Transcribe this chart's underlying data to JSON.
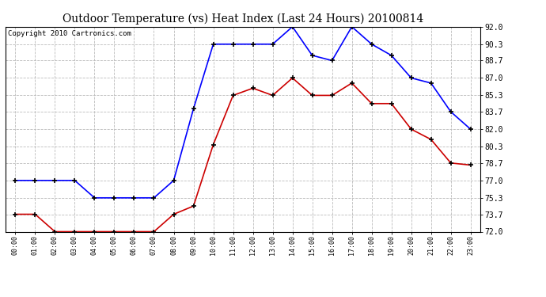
{
  "title": "Outdoor Temperature (vs) Heat Index (Last 24 Hours) 20100814",
  "copyright_text": "Copyright 2010 Cartronics.com",
  "hours": [
    "00:00",
    "01:00",
    "02:00",
    "03:00",
    "04:00",
    "05:00",
    "06:00",
    "07:00",
    "08:00",
    "09:00",
    "10:00",
    "11:00",
    "12:00",
    "13:00",
    "14:00",
    "15:00",
    "16:00",
    "17:00",
    "18:00",
    "19:00",
    "20:00",
    "21:00",
    "22:00",
    "23:00"
  ],
  "blue_values": [
    77.0,
    77.0,
    77.0,
    77.0,
    75.3,
    75.3,
    75.3,
    75.3,
    77.0,
    84.0,
    90.3,
    90.3,
    90.3,
    90.3,
    92.0,
    89.2,
    88.7,
    92.0,
    90.3,
    89.2,
    87.0,
    86.5,
    83.7,
    82.0
  ],
  "red_values": [
    73.7,
    73.7,
    72.0,
    72.0,
    72.0,
    72.0,
    72.0,
    72.0,
    73.7,
    74.5,
    80.5,
    85.3,
    86.0,
    85.3,
    87.0,
    85.3,
    85.3,
    86.5,
    84.5,
    84.5,
    82.0,
    81.0,
    78.7,
    78.5
  ],
  "ylim": [
    72.0,
    92.0
  ],
  "yticks": [
    72.0,
    73.7,
    75.3,
    77.0,
    78.7,
    80.3,
    82.0,
    83.7,
    85.3,
    87.0,
    88.7,
    90.3,
    92.0
  ],
  "blue_color": "#0000ff",
  "red_color": "#cc0000",
  "bg_color": "#ffffff",
  "grid_color": "#bbbbbb",
  "title_color": "#000000",
  "title_fontsize": 10,
  "copyright_fontsize": 6.5
}
